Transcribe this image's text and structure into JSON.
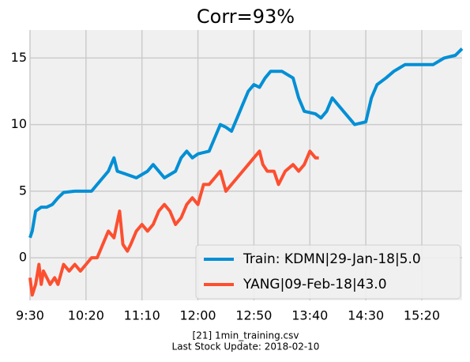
{
  "chart_data": {
    "type": "line",
    "title": "Corr=93%",
    "footer_lines": [
      "[21] 1min_training.csv",
      "Last Stock Update: 2018-02-10"
    ],
    "xlim": [
      0,
      386
    ],
    "ylim": [
      -3.2,
      17.1
    ],
    "xticks": [
      {
        "value": 0,
        "label": "9:30"
      },
      {
        "value": 50,
        "label": "10:20"
      },
      {
        "value": 100,
        "label": "11:10"
      },
      {
        "value": 150,
        "label": "12:00"
      },
      {
        "value": 200,
        "label": "12:50"
      },
      {
        "value": 250,
        "label": "13:40"
      },
      {
        "value": 300,
        "label": "14:30"
      },
      {
        "value": 350,
        "label": "15:20"
      }
    ],
    "yticks": [
      0,
      5,
      10,
      15
    ],
    "grid": true,
    "legend": "lower right",
    "series": [
      {
        "name": "Train: KDMN|29-Jan-18|5.0",
        "color": "#008fd5",
        "x": [
          0,
          2,
          5,
          10,
          15,
          20,
          25,
          30,
          40,
          50,
          55,
          60,
          65,
          70,
          75,
          78,
          85,
          95,
          105,
          110,
          115,
          120,
          130,
          135,
          140,
          145,
          150,
          160,
          165,
          170,
          175,
          180,
          185,
          190,
          195,
          200,
          205,
          210,
          215,
          225,
          235,
          240,
          245,
          255,
          260,
          265,
          270,
          280,
          290,
          300,
          305,
          310,
          318,
          325,
          335,
          340,
          350,
          360,
          370,
          380,
          386
        ],
        "values": [
          1.5,
          2,
          3.5,
          3.8,
          3.8,
          4,
          4.5,
          4.9,
          5,
          5,
          5,
          5.5,
          6,
          6.5,
          7.5,
          6.5,
          6.3,
          6,
          6.5,
          7,
          6.5,
          6,
          6.5,
          7.5,
          8,
          7.5,
          7.8,
          8,
          9,
          10,
          9.8,
          9.5,
          10.5,
          11.5,
          12.5,
          13,
          12.8,
          13.5,
          14,
          14,
          13.5,
          12,
          11,
          10.8,
          10.5,
          11,
          12,
          11,
          10,
          10.2,
          12,
          13,
          13.5,
          14,
          14.5,
          14.5,
          14.5,
          14.5,
          15,
          15.2,
          15.7
        ]
      },
      {
        "name": "YANG|09-Feb-18|43.0",
        "color": "#fc4f30",
        "x": [
          0,
          2,
          5,
          8,
          10,
          12,
          15,
          18,
          22,
          25,
          30,
          35,
          40,
          45,
          50,
          55,
          60,
          65,
          70,
          75,
          80,
          83,
          87,
          90,
          95,
          100,
          105,
          110,
          115,
          120,
          125,
          130,
          135,
          140,
          145,
          150,
          155,
          160,
          165,
          170,
          175,
          180,
          185,
          190,
          195,
          200,
          205,
          208,
          212,
          218,
          222,
          228,
          235,
          240,
          245,
          250,
          255,
          258
        ],
        "values": [
          -1.5,
          -2.8,
          -2,
          -0.5,
          -2,
          -1,
          -1.5,
          -2,
          -1.5,
          -2,
          -0.5,
          -1,
          -0.5,
          -1,
          -0.5,
          0,
          0,
          1,
          2,
          1.5,
          3.5,
          1,
          0.5,
          1,
          2,
          2.5,
          2,
          2.5,
          3.5,
          4,
          3.5,
          2.5,
          3,
          4,
          4.5,
          4,
          5.5,
          5.5,
          6,
          6.5,
          5,
          5.5,
          6,
          6.5,
          7,
          7.5,
          8,
          7,
          6.5,
          6.5,
          5.5,
          6.5,
          7,
          6.5,
          7,
          8,
          7.5,
          7.5
        ]
      }
    ]
  }
}
